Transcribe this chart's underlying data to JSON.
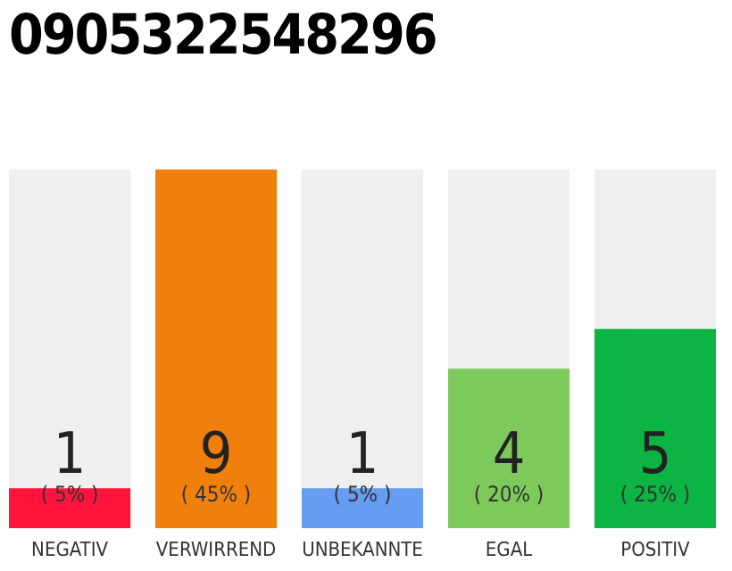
{
  "chart_data": {
    "type": "bar",
    "title": "0905322548296",
    "categories": [
      "NEGATIV",
      "VERWIRREND",
      "UNBEKANNTE",
      "EGAL",
      "POSITIV"
    ],
    "values": [
      1,
      9,
      1,
      4,
      5
    ],
    "colors": [
      "#ff143c",
      "#f07f0c",
      "#669df0",
      "#7ec95c",
      "#0bb443"
    ],
    "ylim": [
      0,
      9
    ],
    "data_labels": true,
    "tick_labels": "x",
    "annotations": [
      "( 5% )",
      "( 45% )",
      "( 5% )",
      "( 20% )",
      "( 25% )"
    ]
  }
}
